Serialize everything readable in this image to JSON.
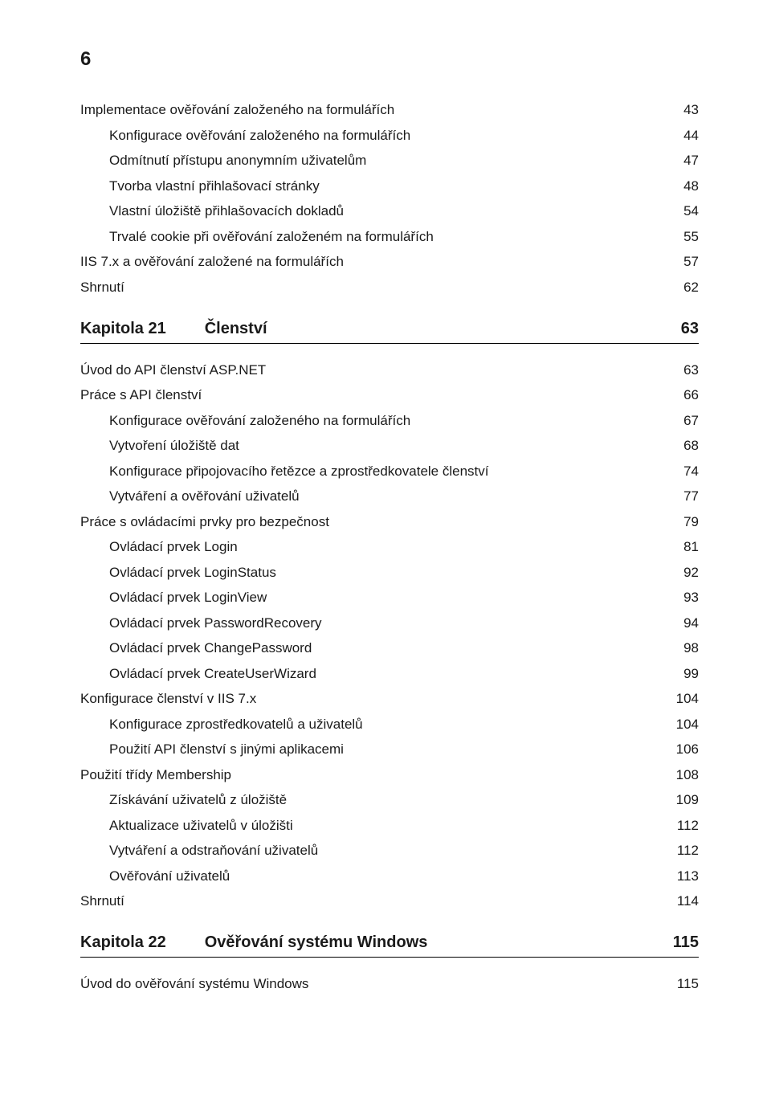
{
  "pageNumber": "6",
  "section1": [
    {
      "label": "Implementace ověřování založeného na formulářích",
      "page": "43",
      "indent": 1
    },
    {
      "label": "Konfigurace ověřování založeného na formulářích",
      "page": "44",
      "indent": 2
    },
    {
      "label": "Odmítnutí přístupu anonymním uživatelům",
      "page": "47",
      "indent": 2
    },
    {
      "label": "Tvorba vlastní přihlašovací stránky",
      "page": "48",
      "indent": 2
    },
    {
      "label": "Vlastní úložiště přihlašovacích dokladů",
      "page": "54",
      "indent": 2
    },
    {
      "label": "Trvalé cookie při ověřování založeném na formulářích",
      "page": "55",
      "indent": 2
    },
    {
      "label": "IIS 7.x a ověřování založené na formulářích",
      "page": "57",
      "indent": 1
    },
    {
      "label": "Shrnutí",
      "page": "62",
      "indent": 1
    }
  ],
  "chapter21": {
    "prefix": "Kapitola 21",
    "title": "Členství",
    "page": "63"
  },
  "section2": [
    {
      "label": "Úvod do API členství ASP.NET",
      "page": "63",
      "indent": 1
    },
    {
      "label": "Práce s API členství",
      "page": "66",
      "indent": 1
    },
    {
      "label": "Konfigurace ověřování založeného na formulářích",
      "page": "67",
      "indent": 2
    },
    {
      "label": "Vytvoření úložiště dat",
      "page": "68",
      "indent": 2
    },
    {
      "label": "Konfigurace připojovacího řetězce a zprostředkovatele členství",
      "page": "74",
      "indent": 2
    },
    {
      "label": "Vytváření a ověřování uživatelů",
      "page": "77",
      "indent": 2
    },
    {
      "label": "Práce s ovládacími prvky pro bezpečnost",
      "page": "79",
      "indent": 1
    },
    {
      "label": "Ovládací prvek Login",
      "page": "81",
      "indent": 2
    },
    {
      "label": "Ovládací prvek LoginStatus",
      "page": "92",
      "indent": 2
    },
    {
      "label": "Ovládací prvek LoginView",
      "page": "93",
      "indent": 2
    },
    {
      "label": "Ovládací prvek PasswordRecovery",
      "page": "94",
      "indent": 2
    },
    {
      "label": "Ovládací prvek ChangePassword",
      "page": "98",
      "indent": 2
    },
    {
      "label": "Ovládací prvek CreateUserWizard",
      "page": "99",
      "indent": 2
    },
    {
      "label": "Konfigurace členství v IIS 7.x",
      "page": "104",
      "indent": 1
    },
    {
      "label": "Konfigurace zprostředkovatelů a uživatelů",
      "page": "104",
      "indent": 2
    },
    {
      "label": "Použití API členství s jinými aplikacemi",
      "page": "106",
      "indent": 2
    },
    {
      "label": "Použití třídy Membership",
      "page": "108",
      "indent": 1
    },
    {
      "label": "Získávání uživatelů z úložiště",
      "page": "109",
      "indent": 2
    },
    {
      "label": "Aktualizace uživatelů v úložišti",
      "page": "112",
      "indent": 2
    },
    {
      "label": "Vytváření a odstraňování uživatelů",
      "page": "112",
      "indent": 2
    },
    {
      "label": "Ověřování uživatelů",
      "page": "113",
      "indent": 2
    },
    {
      "label": "Shrnutí",
      "page": "114",
      "indent": 1
    }
  ],
  "chapter22": {
    "prefix": "Kapitola 22",
    "title": "Ověřování systému Windows",
    "page": "115"
  },
  "section3": [
    {
      "label": "Úvod do ověřování systému Windows",
      "page": "115",
      "indent": 1
    }
  ]
}
